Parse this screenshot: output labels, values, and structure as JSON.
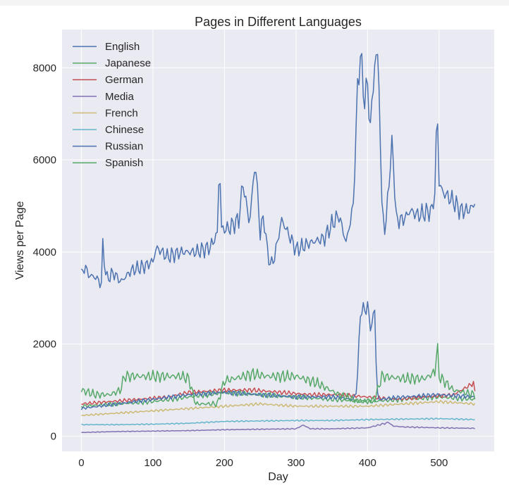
{
  "chart_data": {
    "type": "line",
    "title": "Pages in Different Languages",
    "xlabel": "Day",
    "ylabel": "Views per Page",
    "xlim": [
      -27,
      577
    ],
    "ylim": [
      -330,
      8830
    ],
    "xticks": [
      0,
      100,
      200,
      300,
      400,
      500
    ],
    "yticks": [
      0,
      2000,
      4000,
      6000,
      8000
    ],
    "grid": true,
    "legend_location": "top-left",
    "series": [
      {
        "name": "English",
        "color": "#4c72b0",
        "x": [
          0,
          5,
          10,
          20,
          28,
          30,
          35,
          45,
          55,
          70,
          90,
          100,
          105,
          120,
          140,
          160,
          180,
          190,
          193,
          196,
          205,
          220,
          226,
          235,
          243,
          250,
          255,
          260,
          265,
          270,
          280,
          300,
          320,
          340,
          350,
          360,
          370,
          380,
          386,
          390,
          395,
          400,
          404,
          410,
          415,
          420,
          425,
          430,
          435,
          440,
          450,
          460,
          470,
          480,
          490,
          495,
          497,
          500,
          505,
          520,
          530,
          540,
          548,
          550
        ],
        "values": [
          3500,
          3700,
          3500,
          3450,
          3300,
          4150,
          3400,
          3550,
          3350,
          3600,
          3700,
          3800,
          4100,
          3900,
          4000,
          4000,
          4100,
          4400,
          6050,
          4500,
          4500,
          4700,
          5500,
          4600,
          6000,
          4400,
          4800,
          4000,
          3700,
          3900,
          4700,
          4050,
          4200,
          4300,
          4600,
          4800,
          4200,
          5000,
          7500,
          8350,
          7300,
          7600,
          6700,
          8100,
          8300,
          5000,
          4400,
          5600,
          6400,
          4700,
          4700,
          4900,
          4800,
          4850,
          4900,
          5400,
          7500,
          5500,
          5300,
          5100,
          4900,
          4900,
          5000,
          5100
        ]
      },
      {
        "name": "Japanese",
        "color": "#55a868",
        "x": [
          0,
          20,
          40,
          55,
          60,
          100,
          140,
          150,
          160,
          190,
          200,
          240,
          260,
          300,
          330,
          360,
          390,
          410,
          420,
          450,
          480,
          495,
          497,
          500,
          520,
          550
        ],
        "values": [
          1000,
          900,
          900,
          1000,
          1300,
          1300,
          1300,
          1250,
          700,
          700,
          1200,
          1350,
          1300,
          1300,
          1150,
          900,
          750,
          800,
          1300,
          1250,
          1250,
          1400,
          2100,
          1300,
          1000,
          900
        ]
      },
      {
        "name": "German",
        "color": "#c44e52",
        "x": [
          0,
          40,
          80,
          120,
          150,
          200,
          240,
          280,
          320,
          360,
          400,
          440,
          480,
          520,
          548,
          550
        ],
        "values": [
          700,
          750,
          800,
          850,
          950,
          1000,
          1000,
          950,
          900,
          900,
          850,
          800,
          850,
          900,
          1150,
          950
        ]
      },
      {
        "name": "Media",
        "color": "#8172b2",
        "x": [
          0,
          50,
          100,
          150,
          200,
          250,
          300,
          310,
          320,
          350,
          400,
          430,
          435,
          450,
          500,
          550
        ],
        "values": [
          80,
          100,
          110,
          120,
          140,
          150,
          160,
          240,
          160,
          160,
          180,
          300,
          220,
          200,
          180,
          170
        ]
      },
      {
        "name": "French",
        "color": "#ccb974",
        "x": [
          0,
          50,
          100,
          150,
          200,
          250,
          300,
          350,
          400,
          450,
          500,
          550
        ],
        "values": [
          450,
          500,
          550,
          600,
          650,
          700,
          650,
          650,
          650,
          700,
          750,
          700
        ]
      },
      {
        "name": "Chinese",
        "color": "#64b5cd",
        "x": [
          0,
          50,
          100,
          150,
          200,
          250,
          300,
          350,
          400,
          450,
          500,
          550
        ],
        "values": [
          250,
          250,
          260,
          280,
          320,
          330,
          340,
          340,
          360,
          370,
          380,
          360
        ]
      },
      {
        "name": "Russian",
        "color": "#4c72b0",
        "x": [
          0,
          50,
          100,
          150,
          200,
          250,
          300,
          350,
          380,
          385,
          390,
          400,
          405,
          410,
          413,
          416,
          450,
          500,
          550
        ],
        "values": [
          600,
          700,
          800,
          900,
          950,
          900,
          850,
          850,
          800,
          1000,
          2700,
          2800,
          2300,
          2800,
          1000,
          800,
          850,
          900,
          850
        ]
      },
      {
        "name": "Spanish",
        "color": "#55a868",
        "x": [
          0,
          50,
          100,
          150,
          200,
          250,
          300,
          350,
          400,
          450,
          500,
          550
        ],
        "values": [
          650,
          700,
          750,
          850,
          950,
          900,
          850,
          800,
          750,
          800,
          850,
          800
        ]
      }
    ]
  }
}
